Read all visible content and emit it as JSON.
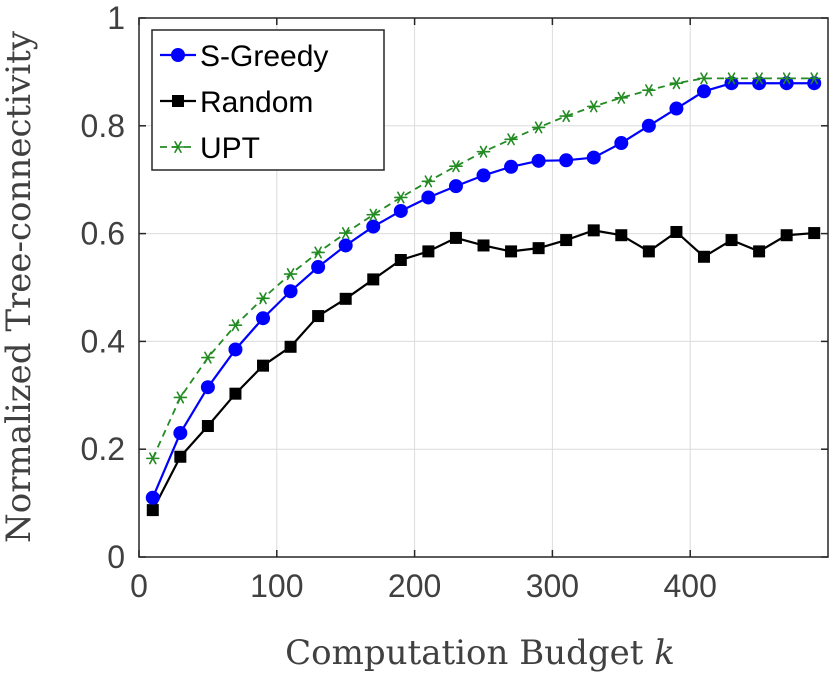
{
  "chart_data": {
    "type": "line",
    "title": "",
    "xlabel": "Computation Budget",
    "xlabel_var": "k",
    "ylabel": "Normalized Tree-connectivity",
    "xlim": [
      0,
      500
    ],
    "ylim": [
      0,
      1
    ],
    "xticks": [
      0,
      100,
      200,
      300,
      400
    ],
    "yticks": [
      0,
      0.2,
      0.4,
      0.6,
      0.8,
      1
    ],
    "xtick_labels": [
      "0",
      "100",
      "200",
      "300",
      "400"
    ],
    "ytick_labels": [
      "0",
      "0.2",
      "0.4",
      "0.6",
      "0.8",
      "1"
    ],
    "grid": true,
    "legend_position": "top-left",
    "x": [
      10,
      30,
      50,
      70,
      90,
      110,
      130,
      150,
      170,
      190,
      210,
      230,
      250,
      270,
      290,
      310,
      330,
      350,
      370,
      390,
      410,
      430,
      450,
      470,
      490
    ],
    "series": [
      {
        "name": "S-Greedy",
        "color": "#0000ff",
        "marker": "circle",
        "line": "solid",
        "values": [
          0.11,
          0.23,
          0.315,
          0.385,
          0.443,
          0.493,
          0.538,
          0.578,
          0.613,
          0.642,
          0.667,
          0.688,
          0.708,
          0.724,
          0.735,
          0.736,
          0.741,
          0.768,
          0.8,
          0.832,
          0.864,
          0.879,
          0.879,
          0.879,
          0.879
        ]
      },
      {
        "name": "Random",
        "color": "#000000",
        "marker": "square",
        "line": "solid",
        "values": [
          0.087,
          0.186,
          0.243,
          0.303,
          0.355,
          0.39,
          0.447,
          0.479,
          0.515,
          0.551,
          0.567,
          0.592,
          0.578,
          0.567,
          0.573,
          0.588,
          0.606,
          0.597,
          0.567,
          0.603,
          0.557,
          0.588,
          0.567,
          0.597,
          0.601
        ]
      },
      {
        "name": "UPT",
        "color": "#228b22",
        "marker": "asterisk",
        "line": "dashed",
        "values": [
          0.183,
          0.296,
          0.37,
          0.43,
          0.48,
          0.525,
          0.565,
          0.601,
          0.635,
          0.667,
          0.697,
          0.725,
          0.752,
          0.775,
          0.797,
          0.818,
          0.836,
          0.852,
          0.866,
          0.879,
          0.888,
          0.888,
          0.888,
          0.888,
          0.888
        ]
      }
    ]
  }
}
